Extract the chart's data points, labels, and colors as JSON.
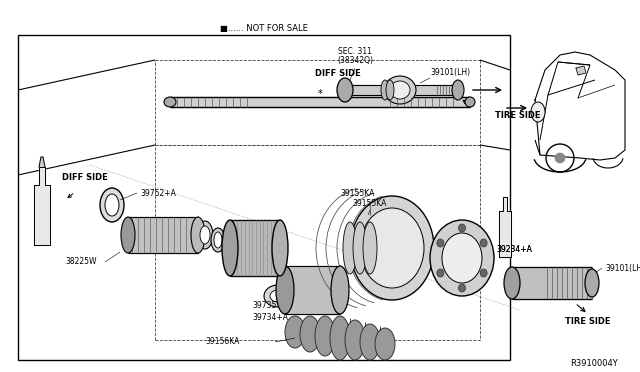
{
  "bg_color": "#ffffff",
  "diagram_id": "R3910004Y",
  "not_for_sale_text": "■...... NOT FOR SALE",
  "sec_text": "SEC. 311\n(38342Q)",
  "fig_w": 6.4,
  "fig_h": 3.72,
  "dpi": 100
}
